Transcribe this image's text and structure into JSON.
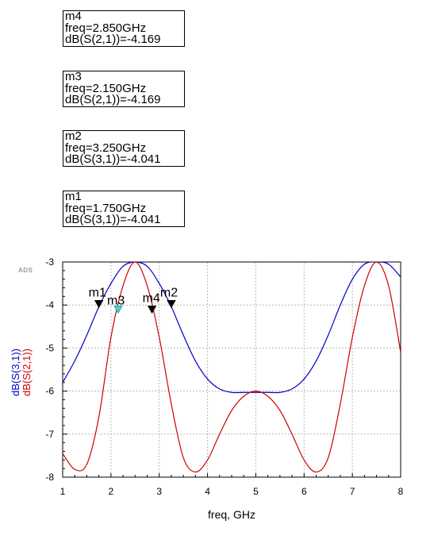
{
  "marker_readouts": [
    {
      "name": "m4",
      "freq": "freq=2.850GHz",
      "value": "dB(S(2,1))=-4.169"
    },
    {
      "name": "m3",
      "freq": "freq=2.150GHz",
      "value": "dB(S(2,1))=-4.169"
    },
    {
      "name": "m2",
      "freq": "freq=3.250GHz",
      "value": "dB(S(3,1))=-4.041"
    },
    {
      "name": "m1",
      "freq": "freq=1.750GHz",
      "value": "dB(S(3,1))=-4.041"
    }
  ],
  "watermark": "ADS",
  "chart_data": {
    "type": "line",
    "title": "",
    "xlabel": "freq, GHz",
    "ylabel_series": [
      "dB(S(3,1))",
      "dB(S(2,1))"
    ],
    "xlim": [
      1,
      8
    ],
    "ylim": [
      -8,
      -3
    ],
    "xticks": [
      1,
      2,
      3,
      4,
      5,
      6,
      7,
      8
    ],
    "yticks": [
      -8,
      -7,
      -6,
      -5,
      -4,
      -3
    ],
    "grid": true,
    "series": [
      {
        "name": "dB(S(3,1))",
        "color": "#0000c8",
        "x": [
          1.0,
          1.25,
          1.5,
          1.75,
          2.0,
          2.25,
          2.5,
          2.75,
          3.0,
          3.25,
          3.5,
          3.75,
          4.0,
          4.25,
          4.5,
          4.75,
          5.0,
          5.25,
          5.5,
          5.75,
          6.0,
          6.25,
          6.5,
          6.75,
          7.0,
          7.25,
          7.5,
          7.75,
          8.0
        ],
        "y": [
          -5.8,
          -5.3,
          -4.7,
          -4.04,
          -3.5,
          -3.1,
          -3.0,
          -3.1,
          -3.5,
          -4.04,
          -4.7,
          -5.3,
          -5.72,
          -5.95,
          -6.03,
          -6.03,
          -6.03,
          -6.03,
          -6.03,
          -5.95,
          -5.72,
          -5.3,
          -4.7,
          -4.0,
          -3.4,
          -3.05,
          -3.0,
          -3.05,
          -3.35
        ]
      },
      {
        "name": "dB(S(2,1))",
        "color": "#d00000",
        "x": [
          1.0,
          1.25,
          1.5,
          1.75,
          2.0,
          2.25,
          2.5,
          2.75,
          3.0,
          3.25,
          3.5,
          3.75,
          4.0,
          4.25,
          4.5,
          4.75,
          5.0,
          5.25,
          5.5,
          5.75,
          6.0,
          6.25,
          6.5,
          6.75,
          7.0,
          7.25,
          7.5,
          7.75,
          8.0
        ],
        "y": [
          -7.45,
          -7.82,
          -7.7,
          -6.6,
          -4.75,
          -3.55,
          -3.0,
          -3.55,
          -4.75,
          -6.3,
          -7.55,
          -7.88,
          -7.6,
          -7.0,
          -6.45,
          -6.12,
          -6.0,
          -6.12,
          -6.45,
          -7.0,
          -7.6,
          -7.88,
          -7.55,
          -6.3,
          -4.75,
          -3.55,
          -3.0,
          -3.55,
          -5.1
        ]
      }
    ],
    "markers": [
      {
        "name": "m1",
        "x": 1.75,
        "y": -4.041,
        "style": "filled"
      },
      {
        "name": "m3",
        "x": 2.15,
        "y": -4.169,
        "style": "selected"
      },
      {
        "name": "m4",
        "x": 2.85,
        "y": -4.169,
        "style": "filled"
      },
      {
        "name": "m2",
        "x": 3.25,
        "y": -4.041,
        "style": "filled"
      }
    ]
  }
}
